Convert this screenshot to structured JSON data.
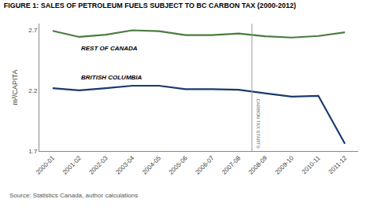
{
  "chart_data": {
    "type": "line",
    "title": "FIGURE 1: SALES OF PETROLEUM FUELS SUBJECT TO BC CARBON TAX (2000-2012)",
    "ylabel": "m³/CAPITA",
    "categories": [
      "2000-01",
      "2001-02",
      "2002-03",
      "2003-04",
      "2004-05",
      "2005-06",
      "2006-07",
      "2007-08",
      "2008-09",
      "2009-10",
      "2010-11",
      "2011-12"
    ],
    "series": [
      {
        "name": "REST OF CANADA",
        "color": "#4a7c3f",
        "values": [
          2.69,
          2.64,
          2.658,
          2.695,
          2.688,
          2.655,
          2.655,
          2.668,
          2.645,
          2.635,
          2.648,
          2.678
        ]
      },
      {
        "name": "BRITISH COLUMBIA",
        "color": "#1a3a6b",
        "values": [
          2.218,
          2.2,
          2.218,
          2.238,
          2.238,
          2.21,
          2.21,
          2.205,
          2.175,
          2.148,
          2.155,
          1.76
        ]
      }
    ],
    "annotations": [
      {
        "text": "CARBON TAX STARTS",
        "x": "2008-09"
      },
      {
        "text": "Source: Statistics Canada, author calculations"
      }
    ],
    "ylim": [
      1.7,
      2.75
    ],
    "yticks": [
      1.7,
      2.2,
      2.7
    ],
    "grid": false
  }
}
